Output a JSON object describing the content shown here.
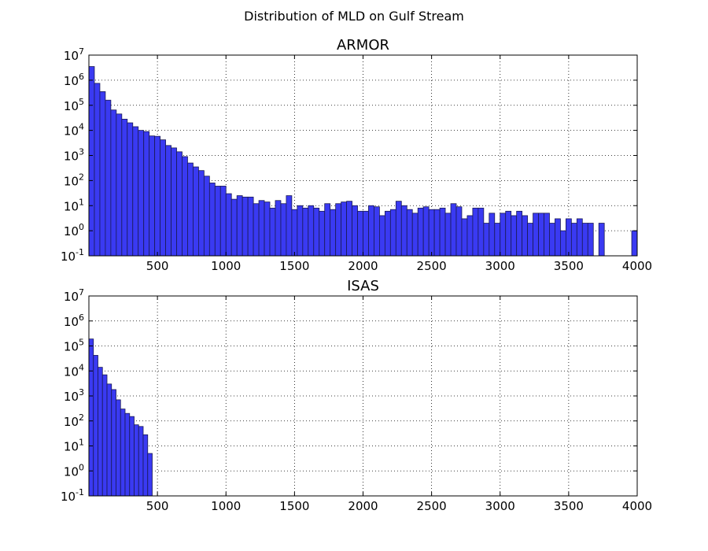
{
  "figure": {
    "suptitle": "Distribution of MLD on Gulf Stream",
    "bar_color": "#3a3af2",
    "bar_edge_color": "#1a1a55"
  },
  "chart_data": [
    {
      "type": "bar",
      "title": "ARMOR",
      "xlabel": "",
      "ylabel": "",
      "xlim": [
        0,
        4000
      ],
      "ylim": [
        0.1,
        10000000
      ],
      "yscale": "log",
      "grid": true,
      "bin_width": 40,
      "xticks": [
        500,
        1000,
        1500,
        2000,
        2500,
        3000,
        3500,
        4000
      ],
      "yticks": [
        {
          "base": "10",
          "exp": "-1"
        },
        {
          "base": "10",
          "exp": "0"
        },
        {
          "base": "10",
          "exp": "1"
        },
        {
          "base": "10",
          "exp": "2"
        },
        {
          "base": "10",
          "exp": "3"
        },
        {
          "base": "10",
          "exp": "4"
        },
        {
          "base": "10",
          "exp": "5"
        },
        {
          "base": "10",
          "exp": "6"
        },
        {
          "base": "10",
          "exp": "7"
        }
      ],
      "values": [
        3500000,
        750000,
        350000,
        160000,
        65000,
        45000,
        28000,
        20000,
        14000,
        10000,
        9000,
        6000,
        5800,
        4200,
        2500,
        2000,
        1400,
        900,
        500,
        350,
        250,
        150,
        80,
        60,
        60,
        30,
        18,
        25,
        22,
        22,
        12,
        16,
        14,
        8,
        16,
        12,
        25,
        7,
        10,
        8,
        10,
        8,
        6,
        12,
        7,
        12,
        14,
        15,
        10,
        6,
        6,
        10,
        9,
        4,
        6,
        7,
        15,
        10,
        7,
        5,
        8,
        9,
        7,
        7,
        8,
        5,
        12,
        9,
        3,
        4,
        8,
        8,
        2,
        5,
        2,
        5,
        6,
        4,
        6,
        4,
        2,
        5,
        5,
        5,
        2,
        3,
        1,
        3,
        2,
        3,
        2,
        2,
        0,
        2,
        0,
        0,
        0,
        0,
        0,
        1
      ]
    },
    {
      "type": "bar",
      "title": "ISAS",
      "xlabel": "",
      "ylabel": "",
      "xlim": [
        0,
        4000
      ],
      "ylim": [
        0.1,
        10000000
      ],
      "yscale": "log",
      "grid": true,
      "bin_width": 33,
      "xticks": [
        500,
        1000,
        1500,
        2000,
        2500,
        3000,
        3500,
        4000
      ],
      "yticks": [
        {
          "base": "10",
          "exp": "-1"
        },
        {
          "base": "10",
          "exp": "0"
        },
        {
          "base": "10",
          "exp": "1"
        },
        {
          "base": "10",
          "exp": "2"
        },
        {
          "base": "10",
          "exp": "3"
        },
        {
          "base": "10",
          "exp": "4"
        },
        {
          "base": "10",
          "exp": "5"
        },
        {
          "base": "10",
          "exp": "6"
        },
        {
          "base": "10",
          "exp": "7"
        }
      ],
      "values": [
        190000,
        42000,
        14000,
        7000,
        3000,
        1800,
        700,
        300,
        200,
        150,
        70,
        60,
        28,
        5
      ]
    }
  ]
}
